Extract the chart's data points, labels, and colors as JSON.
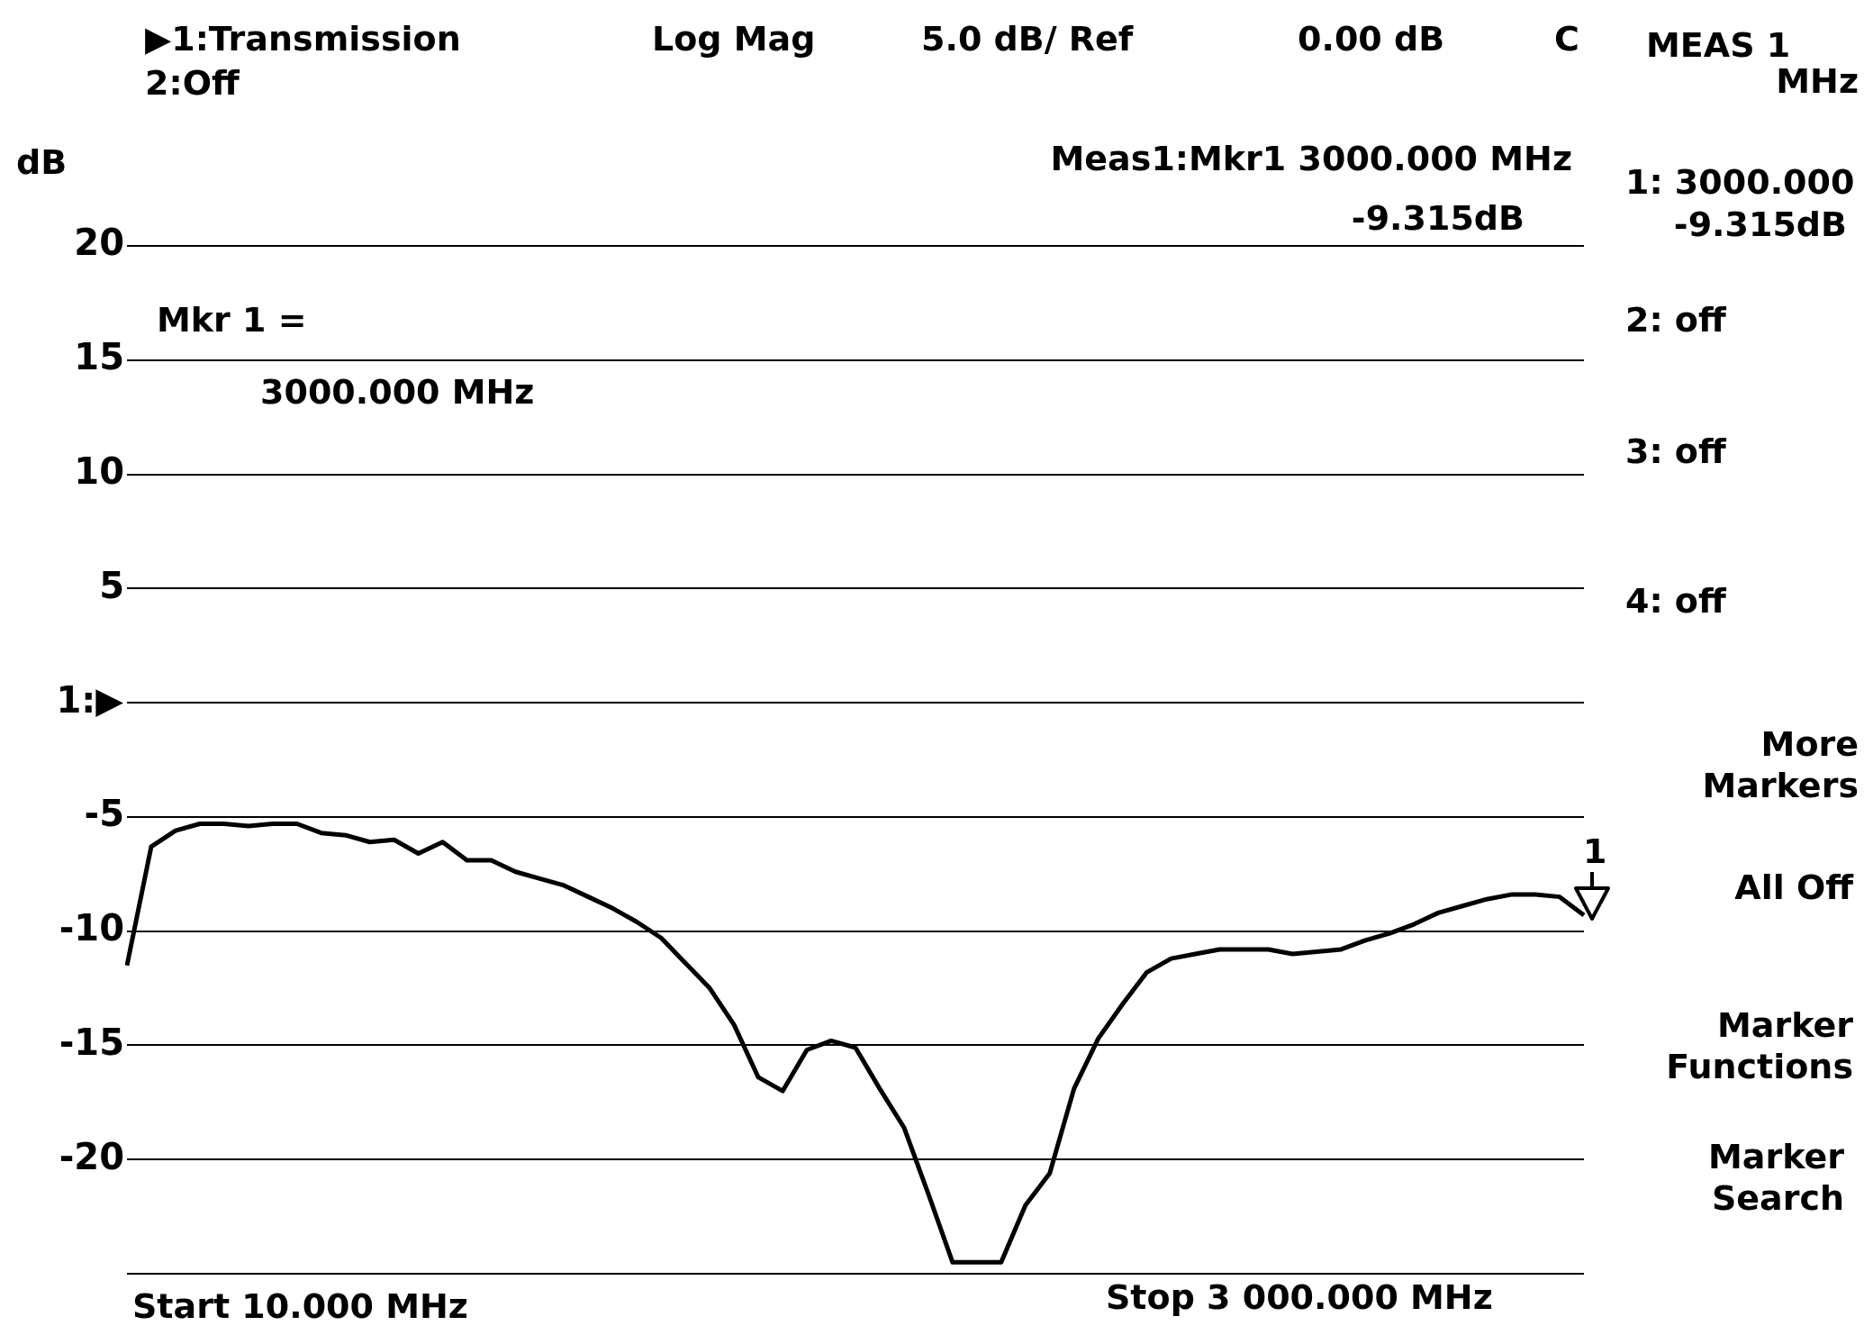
{
  "chart_data": {
    "type": "line",
    "title": "▶1:Transmission",
    "subtitle": "2:Off",
    "ylabel": "dB",
    "categories": [
      null,
      null,
      null,
      null,
      null,
      null,
      null,
      null,
      null,
      null,
      null,
      null,
      null,
      null,
      null,
      null,
      null,
      null,
      null,
      null,
      null,
      null,
      null,
      null,
      null,
      null,
      null,
      null,
      null,
      null,
      null,
      null,
      null,
      null,
      null,
      null,
      null,
      null,
      null,
      null,
      null,
      null,
      null,
      null,
      null,
      null,
      null,
      null,
      null,
      null,
      null,
      null,
      null,
      null,
      null,
      null,
      null,
      null,
      null,
      null,
      null
    ],
    "ylim": [
      -25,
      20
    ],
    "yticks": [
      {
        "value": -25,
        "label": null
      },
      -20,
      -15,
      -10,
      -5,
      5,
      10,
      15,
      20
    ],
    "ref_lines": [
      {
        "axis": "y",
        "value": 0,
        "label": "1:▶",
        "color": "#000000"
      }
    ],
    "tick_labels": "y",
    "grid": "y",
    "legend": false,
    "series": [
      {
        "color": "#000000",
        "values": [
          -11.5,
          -6.3,
          -5.6,
          -5.3,
          -5.3,
          -5.4,
          -5.3,
          -5.3,
          -5.7,
          -5.8,
          -6.1,
          -6.0,
          -6.6,
          -6.1,
          -6.9,
          -6.9,
          -7.4,
          -7.7,
          -8.0,
          -8.5,
          -9.0,
          -9.6,
          -10.3,
          -11.4,
          -12.5,
          -14.1,
          -16.4,
          -17.0,
          -15.2,
          -14.8,
          -15.1,
          -16.9,
          -18.6,
          -21.5,
          -24.5,
          -24.5,
          -24.5,
          -22.0,
          -20.6,
          -16.9,
          -14.7,
          -13.2,
          -11.8,
          -11.2,
          -11.0,
          -10.8,
          -10.8,
          -10.8,
          -11.0,
          -10.9,
          -10.8,
          -10.4,
          -10.1,
          -9.7,
          -9.2,
          -8.9,
          -8.6,
          -8.4,
          -8.4,
          -8.5,
          -9.3
        ]
      }
    ],
    "annotations": [
      "Log Mag",
      "5.0 dB/ Ref",
      "0.00 dB",
      "C",
      "Meas1:Mkr1 3000.000 MHz",
      "-9.315dB",
      "Mkr 1 =",
      "3000.000 MHz",
      "MEAS 1",
      "MHz",
      "1: 3000.000",
      "-9.315dB",
      "2: off",
      "3: off",
      "4: off",
      "More Markers",
      "All Off",
      "Marker Functions",
      "Marker Search",
      "Start 10.000 MHz",
      "Stop 3 000.000 MHz",
      "1"
    ]
  }
}
